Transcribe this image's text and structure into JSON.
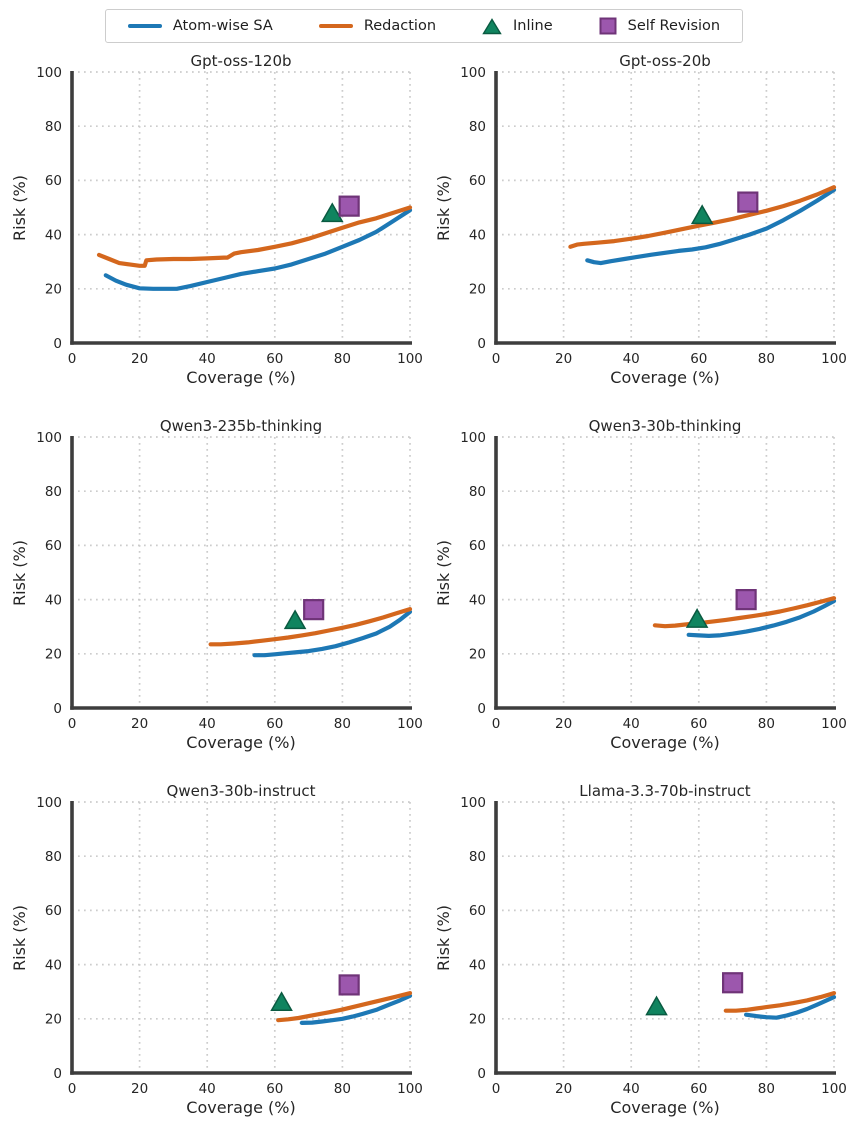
{
  "figure": {
    "background": "#ffffff",
    "spine_color": "#3d3d3d",
    "grid_color": "#cccccc",
    "text_color": "#262626",
    "x_ticks": [
      0,
      20,
      40,
      60,
      80,
      100
    ],
    "y_ticks": [
      0,
      20,
      40,
      60,
      80,
      100
    ]
  },
  "legend": {
    "items": [
      {
        "label": "Atom-wise SA",
        "type": "line",
        "color": "#1d78b5",
        "edge": "#1d78b5"
      },
      {
        "label": "Redaction",
        "type": "line",
        "color": "#d4671d",
        "edge": "#d4671d"
      },
      {
        "label": "Inline",
        "type": "triangle",
        "color": "#10845f",
        "edge": "#0a5a41"
      },
      {
        "label": "Self Revision",
        "type": "square",
        "color": "#9c57ad",
        "edge": "#6f3478"
      }
    ]
  },
  "chart_data": [
    {
      "type": "line",
      "title": "Gpt-oss-120b",
      "xlabel": "Coverage (%)",
      "ylabel": "Risk (%)",
      "xlim": [
        0,
        100
      ],
      "ylim": [
        0,
        100
      ],
      "grid": true,
      "series": [
        {
          "name": "Atom-wise SA",
          "x": [
            10,
            13,
            16,
            20,
            24,
            28,
            31,
            35,
            40,
            45,
            50,
            55,
            60,
            65,
            70,
            75,
            80,
            85,
            90,
            95,
            100
          ],
          "y": [
            25,
            23,
            21.5,
            20.2,
            20,
            20,
            20,
            21,
            22.5,
            24,
            25.5,
            26.5,
            27.5,
            29,
            31,
            33,
            35.5,
            38,
            41,
            45,
            49
          ]
        },
        {
          "name": "Redaction",
          "x": [
            8,
            11,
            14,
            17,
            20,
            21.5,
            22,
            25,
            30,
            35,
            40,
            45,
            46,
            48,
            50,
            55,
            60,
            65,
            70,
            75,
            80,
            85,
            90,
            95,
            100
          ],
          "y": [
            32.5,
            31,
            29.5,
            29,
            28.5,
            28.5,
            30.5,
            30.8,
            31,
            31,
            31.2,
            31.5,
            31.5,
            33,
            33.5,
            34.3,
            35.5,
            36.8,
            38.5,
            40.5,
            42.5,
            44.5,
            46,
            48,
            50
          ]
        }
      ],
      "points": [
        {
          "name": "Inline",
          "x": 77,
          "y": 48
        },
        {
          "name": "Self Revision",
          "x": 82,
          "y": 50.5
        }
      ]
    },
    {
      "type": "line",
      "title": "Gpt-oss-20b",
      "xlabel": "Coverage (%)",
      "ylabel": "Risk (%)",
      "xlim": [
        0,
        100
      ],
      "ylim": [
        0,
        100
      ],
      "grid": true,
      "series": [
        {
          "name": "Atom-wise SA",
          "x": [
            27,
            29,
            31,
            34,
            38,
            42,
            46,
            50,
            54,
            58,
            62,
            66,
            70,
            75,
            80,
            85,
            90,
            95,
            100
          ],
          "y": [
            30.5,
            29.8,
            29.5,
            30.2,
            31,
            31.8,
            32.6,
            33.3,
            34,
            34.5,
            35.3,
            36.5,
            38,
            40,
            42.2,
            45.3,
            48.8,
            52.5,
            56.5
          ]
        },
        {
          "name": "Redaction",
          "x": [
            22,
            24,
            26,
            30,
            35,
            40,
            45,
            50,
            55,
            60,
            65,
            70,
            75,
            80,
            85,
            90,
            95,
            100
          ],
          "y": [
            35.5,
            36.3,
            36.6,
            37,
            37.6,
            38.5,
            39.5,
            40.7,
            42,
            43.3,
            44.5,
            45.8,
            47.3,
            48.8,
            50.5,
            52.5,
            54.8,
            57.5
          ]
        }
      ],
      "points": [
        {
          "name": "Inline",
          "x": 61,
          "y": 47.3
        },
        {
          "name": "Self Revision",
          "x": 74.5,
          "y": 52
        }
      ]
    },
    {
      "type": "line",
      "title": "Qwen3-235b-thinking",
      "xlabel": "Coverage (%)",
      "ylabel": "Risk (%)",
      "xlim": [
        0,
        100
      ],
      "ylim": [
        0,
        100
      ],
      "grid": true,
      "series": [
        {
          "name": "Atom-wise SA",
          "x": [
            54,
            57,
            60,
            63,
            66,
            70,
            74,
            78,
            82,
            86,
            90,
            94,
            97,
            100
          ],
          "y": [
            19.5,
            19.5,
            19.8,
            20.2,
            20.5,
            21,
            21.8,
            22.8,
            24.2,
            25.8,
            27.5,
            30,
            32.5,
            35.5
          ]
        },
        {
          "name": "Redaction",
          "x": [
            41,
            44,
            48,
            52,
            56,
            60,
            64,
            68,
            72,
            76,
            80,
            84,
            88,
            92,
            96,
            100
          ],
          "y": [
            23.5,
            23.5,
            23.8,
            24.2,
            24.8,
            25.4,
            26,
            26.8,
            27.6,
            28.6,
            29.6,
            30.7,
            32,
            33.4,
            35,
            36.5
          ]
        }
      ],
      "points": [
        {
          "name": "Inline",
          "x": 66,
          "y": 32.5
        },
        {
          "name": "Self Revision",
          "x": 71.5,
          "y": 36.3
        }
      ]
    },
    {
      "type": "line",
      "title": "Qwen3-30b-thinking",
      "xlabel": "Coverage (%)",
      "ylabel": "Risk (%)",
      "xlim": [
        0,
        100
      ],
      "ylim": [
        0,
        100
      ],
      "grid": true,
      "series": [
        {
          "name": "Atom-wise SA",
          "x": [
            57,
            60,
            63,
            66,
            70,
            74,
            78,
            82,
            86,
            90,
            94,
            97,
            100
          ],
          "y": [
            27,
            26.8,
            26.6,
            26.8,
            27.4,
            28.2,
            29.2,
            30.4,
            31.8,
            33.5,
            35.6,
            37.5,
            39.5
          ]
        },
        {
          "name": "Redaction",
          "x": [
            47,
            50,
            53,
            56,
            60,
            64,
            68,
            72,
            76,
            80,
            84,
            88,
            92,
            96,
            100
          ],
          "y": [
            30.5,
            30.2,
            30.4,
            30.8,
            31.3,
            31.9,
            32.5,
            33.2,
            33.9,
            34.7,
            35.6,
            36.7,
            37.9,
            39.2,
            40.5
          ]
        }
      ],
      "points": [
        {
          "name": "Inline",
          "x": 59.5,
          "y": 33
        },
        {
          "name": "Self Revision",
          "x": 74,
          "y": 40
        }
      ]
    },
    {
      "type": "line",
      "title": "Qwen3-30b-instruct",
      "xlabel": "Coverage (%)",
      "ylabel": "Risk (%)",
      "xlim": [
        0,
        100
      ],
      "ylim": [
        0,
        100
      ],
      "grid": true,
      "series": [
        {
          "name": "Atom-wise SA",
          "x": [
            68,
            71,
            74,
            77,
            80,
            83,
            86,
            90,
            94,
            97,
            100
          ],
          "y": [
            18.5,
            18.6,
            19,
            19.5,
            20,
            20.8,
            21.8,
            23.3,
            25.3,
            26.8,
            28.5
          ]
        },
        {
          "name": "Redaction",
          "x": [
            61,
            64,
            67,
            70,
            73,
            76,
            80,
            84,
            88,
            92,
            96,
            100
          ],
          "y": [
            19.5,
            19.8,
            20.3,
            21,
            21.7,
            22.4,
            23.4,
            24.6,
            25.8,
            27,
            28.2,
            29.5
          ]
        }
      ],
      "points": [
        {
          "name": "Inline",
          "x": 62,
          "y": 26.3
        },
        {
          "name": "Self Revision",
          "x": 82,
          "y": 32.5
        }
      ]
    },
    {
      "type": "line",
      "title": "Llama-3.3-70b-instruct",
      "xlabel": "Coverage (%)",
      "ylabel": "Risk (%)",
      "xlim": [
        0,
        100
      ],
      "ylim": [
        0,
        100
      ],
      "grid": true,
      "series": [
        {
          "name": "Atom-wise SA",
          "x": [
            74,
            77,
            80,
            83,
            86,
            89,
            92,
            95,
            100
          ],
          "y": [
            21.5,
            21,
            20.6,
            20.4,
            21.2,
            22.3,
            23.6,
            25.2,
            28
          ]
        },
        {
          "name": "Redaction",
          "x": [
            68,
            71,
            74,
            77,
            80,
            84,
            88,
            92,
            96,
            100
          ],
          "y": [
            23,
            23,
            23.3,
            23.8,
            24.3,
            25,
            25.8,
            26.8,
            28,
            29.5
          ]
        }
      ],
      "points": [
        {
          "name": "Inline",
          "x": 47.5,
          "y": 24.7
        },
        {
          "name": "Self Revision",
          "x": 70,
          "y": 33.3
        }
      ]
    }
  ]
}
